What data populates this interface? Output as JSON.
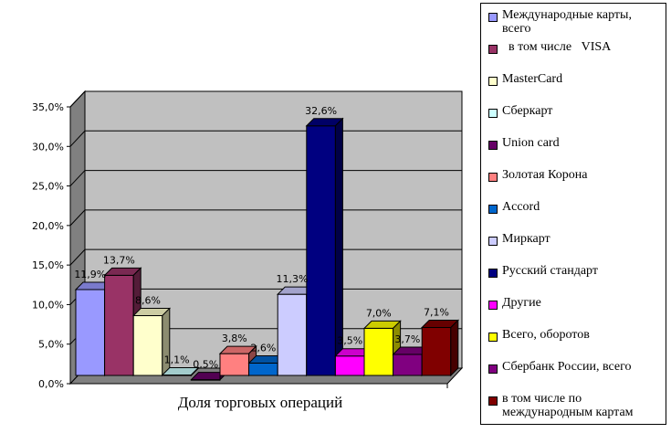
{
  "chart_data": {
    "type": "bar",
    "style": "3d-column",
    "xlabel": "Доля торговых операций",
    "ylabel": "",
    "ylim": [
      0,
      35
    ],
    "yticks": [
      "0,0%",
      "5,0%",
      "10,0%",
      "15,0%",
      "20,0%",
      "25,0%",
      "30,0%",
      "35,0%"
    ],
    "grid": true,
    "legend_position": "right",
    "series": [
      {
        "name": "Международные карты, всего",
        "value": 11.9,
        "label": "11,9%",
        "color": "#9999FF"
      },
      {
        "name": "  в том числе   VISA",
        "value": 13.7,
        "label": "13,7%",
        "color": "#993366"
      },
      {
        "name": "MasterCard",
        "value": 8.6,
        "label": "8,6%",
        "color": "#FFFFCC"
      },
      {
        "name": "Сберкарт",
        "value": 1.1,
        "label": "1,1%",
        "color": "#CCFFFF"
      },
      {
        "name": "Union card",
        "value": 0.5,
        "label": "0,5%",
        "color": "#660066"
      },
      {
        "name": "Золотая Корона",
        "value": 3.8,
        "label": "3,8%",
        "color": "#FF8080"
      },
      {
        "name": "Accord",
        "value": 2.6,
        "label": "2,6%",
        "color": "#0066CC"
      },
      {
        "name": "Миркарт",
        "value": 11.3,
        "label": "11,3%",
        "color": "#CCCCFF"
      },
      {
        "name": "Русский стандарт",
        "value": 32.6,
        "label": "32,6%",
        "color": "#000080"
      },
      {
        "name": "Другие",
        "value": 3.5,
        "label": "3,5%",
        "color": "#FF00FF"
      },
      {
        "name": "Всего, оборотов",
        "value": 7.0,
        "label": "7,0%",
        "color": "#FFFF00"
      },
      {
        "name": "Сбербанк России, всего",
        "value": 3.7,
        "label": "3,7%",
        "color": "#800080"
      },
      {
        "name": "в том числе по международным картам",
        "value": 7.1,
        "label": "7,1%",
        "color": "#800000"
      }
    ],
    "colors": {
      "wall": "#C0C0C0",
      "floor": "#808080",
      "grid": "#000000"
    }
  }
}
